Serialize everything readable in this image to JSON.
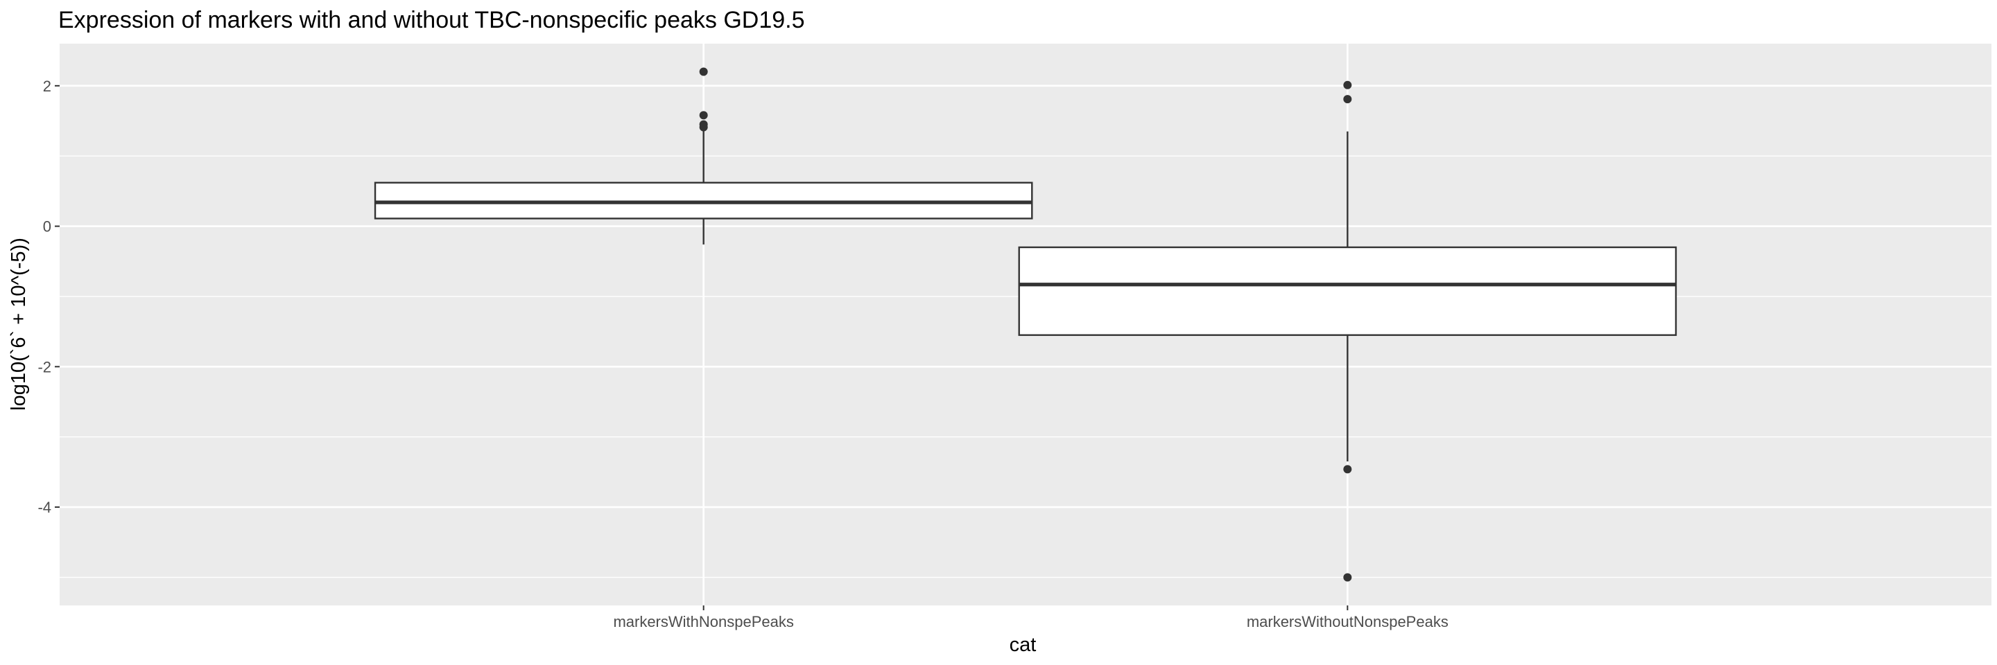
{
  "chart_data": {
    "type": "boxplot",
    "title": "Expression of markers with and without TBC-nonspecific peaks GD19.5",
    "xlabel": "cat",
    "ylabel": "log10(`6` + 10^(-5))",
    "categories": [
      "markersWithNonspePeaks",
      "markersWithoutNonspePeaks"
    ],
    "ylim": [
      -5.4,
      2.6
    ],
    "y_ticks": [
      2,
      0,
      -2,
      -4
    ],
    "y_tick_labels": [
      "2",
      "0",
      "-2",
      "-4"
    ],
    "boxes": [
      {
        "category": "markersWithNonspePeaks",
        "q1": 0.11,
        "median": 0.34,
        "q3": 0.62,
        "whisker_low": -0.26,
        "whisker_high": 1.41,
        "outliers": [
          2.2,
          1.58,
          1.45,
          1.41
        ]
      },
      {
        "category": "markersWithoutNonspePeaks",
        "q1": -1.55,
        "median": -0.83,
        "q3": -0.3,
        "whisker_low": -3.35,
        "whisker_high": 1.35,
        "outliers": [
          2.01,
          1.81,
          -3.46,
          -5.0
        ]
      }
    ],
    "grid": true,
    "colors": {
      "panel_bg": "#ebebeb",
      "grid": "#ffffff",
      "box_fill": "#ffffff",
      "box_line": "#333333",
      "outlier": "#333333"
    }
  }
}
